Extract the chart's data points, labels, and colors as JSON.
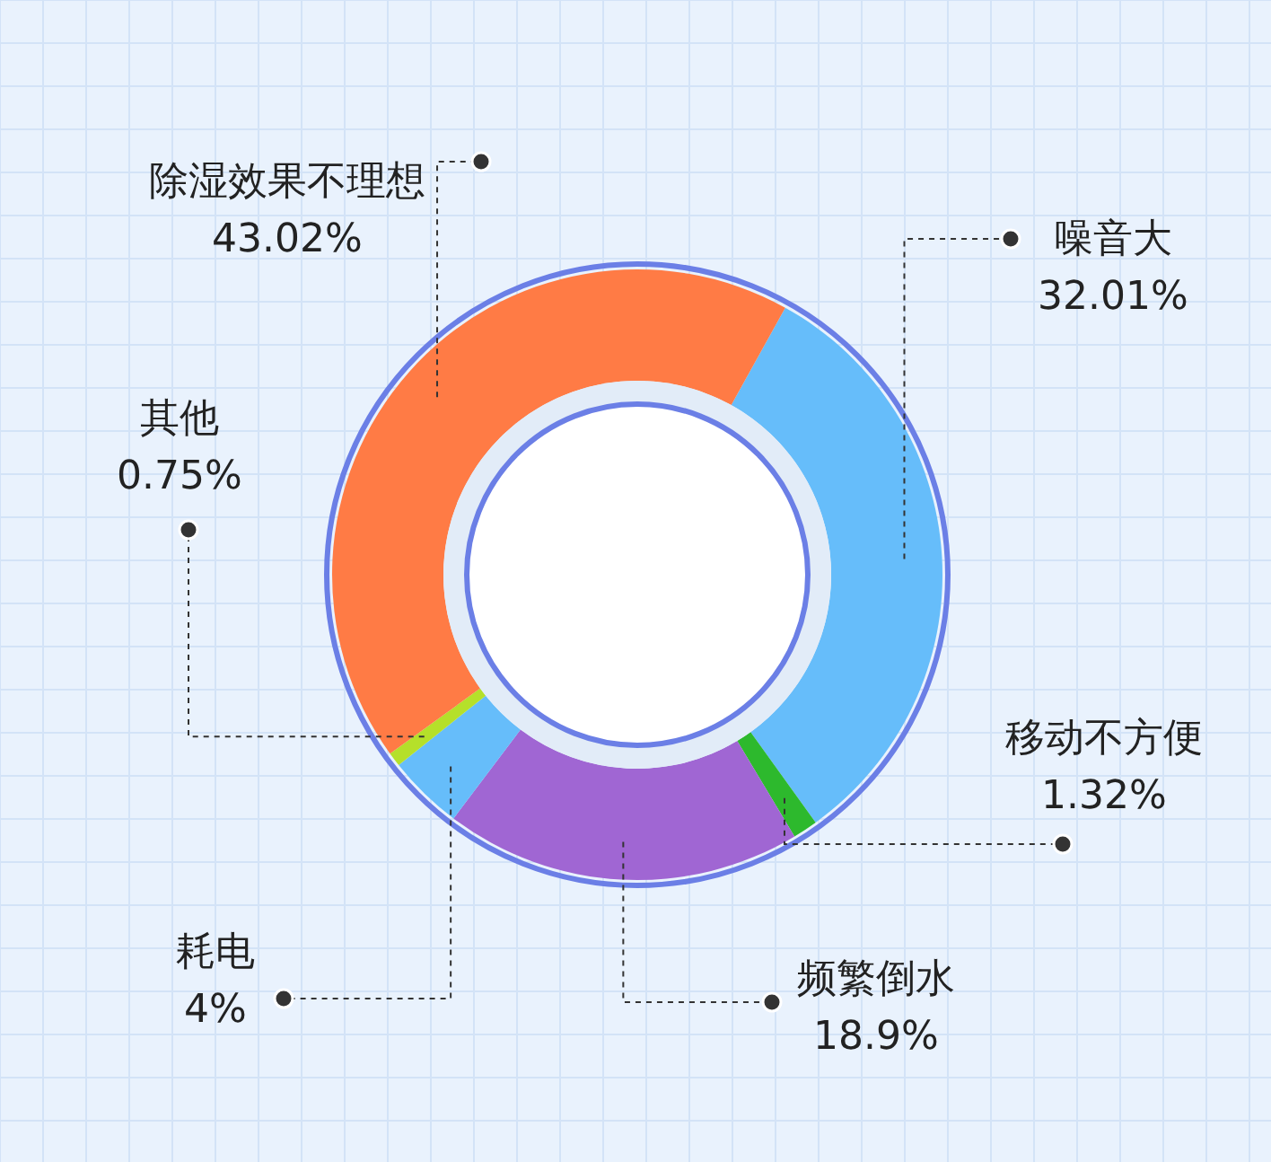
{
  "chart_data": {
    "type": "donut",
    "categories": [
      "噪音大",
      "移动不方便",
      "频繁倒水",
      "耗电",
      "其他",
      "除湿效果不理想"
    ],
    "values": [
      32.01,
      1.32,
      18.9,
      4,
      0.75,
      43.02
    ],
    "value_labels": [
      "32.01%",
      "1.32%",
      "18.9%",
      "4%",
      "0.75%",
      "43.02%"
    ],
    "colors": [
      "#66bdfa",
      "#2db92d",
      "#a066d3",
      "#66bdfa",
      "#b5e02a",
      "#ff7b45"
    ]
  }
}
